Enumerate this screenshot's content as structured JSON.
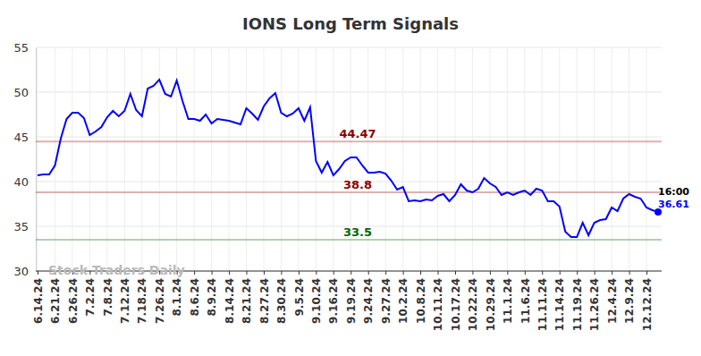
{
  "chart_data": {
    "type": "line",
    "title": "IONS Long Term Signals",
    "categories": [
      "6.14.24",
      null,
      null,
      "6.21.24",
      null,
      null,
      "6.26.24",
      null,
      null,
      "7.2.24",
      null,
      null,
      "7.8.24",
      null,
      null,
      "7.12.24",
      null,
      null,
      "7.18.24",
      null,
      null,
      "7.26.24",
      null,
      null,
      "8.1.24",
      null,
      null,
      "8.6.24",
      null,
      null,
      "8.9.24",
      null,
      null,
      "8.14.24",
      null,
      null,
      "8.21.24",
      null,
      null,
      "8.27.24",
      null,
      null,
      "8.30.24",
      null,
      null,
      "9.5.24",
      null,
      null,
      "9.10.24",
      null,
      null,
      "9.16.24",
      null,
      null,
      "9.19.24",
      null,
      null,
      "9.24.24",
      null,
      null,
      "9.27.24",
      null,
      null,
      "10.2.24",
      null,
      null,
      "10.8.24",
      null,
      null,
      "10.11.24",
      null,
      null,
      "10.17.24",
      null,
      null,
      "10.22.24",
      null,
      null,
      "10.29.24",
      null,
      null,
      "11.1.24",
      null,
      null,
      "11.6.24",
      null,
      null,
      "11.11.24",
      null,
      null,
      "11.14.24",
      null,
      null,
      "11.19.24",
      null,
      null,
      "11.26.24",
      null,
      null,
      "12.4.24",
      null,
      null,
      "12.9.24",
      null,
      null,
      "12.12.24",
      null,
      null
    ],
    "values": [
      40.7,
      40.8,
      40.8,
      41.8,
      44.8,
      47.0,
      47.7,
      47.7,
      47.1,
      45.2,
      45.6,
      46.1,
      47.2,
      47.9,
      47.3,
      47.9,
      49.8,
      48.0,
      47.3,
      50.4,
      50.7,
      51.4,
      49.8,
      49.5,
      51.3,
      49.0,
      47.0,
      47.0,
      46.8,
      47.5,
      46.5,
      47.0,
      46.9,
      46.8,
      46.6,
      46.4,
      48.2,
      47.6,
      46.9,
      48.4,
      49.3,
      49.9,
      47.7,
      47.3,
      47.6,
      48.2,
      46.8,
      48.3,
      42.3,
      41.0,
      42.2,
      40.7,
      41.4,
      42.3,
      42.7,
      42.7,
      41.8,
      41.0,
      41.0,
      41.1,
      40.9,
      40.1,
      39.1,
      39.4,
      37.8,
      37.9,
      37.8,
      38.0,
      37.9,
      38.4,
      38.6,
      37.8,
      38.5,
      39.7,
      39.0,
      38.8,
      39.2,
      40.4,
      39.8,
      39.4,
      38.5,
      38.8,
      38.5,
      38.8,
      39.0,
      38.5,
      39.2,
      39.0,
      37.8,
      37.8,
      37.2,
      34.4,
      33.8,
      33.8,
      35.4,
      34.0,
      35.4,
      35.7,
      35.8,
      37.1,
      36.7,
      38.1,
      38.6,
      38.3,
      38.1,
      37.1,
      36.8,
      36.61
    ],
    "color": "#0000ff",
    "ylim": [
      30,
      55
    ],
    "yticks": [
      30,
      35,
      40,
      45,
      50,
      55
    ],
    "grid": true,
    "annotations": [
      {
        "value": 44.47,
        "color": "#8b0000"
      },
      {
        "value": 38.8,
        "color": "#8b0000"
      },
      {
        "value": 33.5,
        "color": "#006400"
      }
    ],
    "last_point": {
      "time": "16:00"
    },
    "watermark": "Stock Traders Daily"
  }
}
